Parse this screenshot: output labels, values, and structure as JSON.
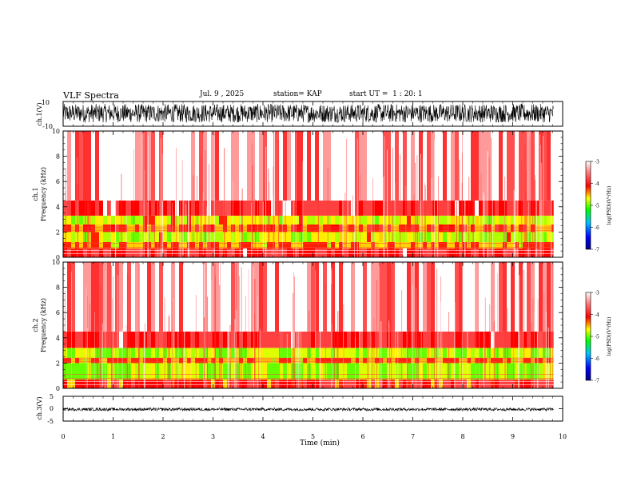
{
  "header": {
    "title": "VLF Spectra",
    "date": "Jul. 9 , 2025",
    "station": "station= KAP",
    "start": "start UT =  1 : 20: 1"
  },
  "colors": {
    "colormap": [
      "#000080",
      "#0000ff",
      "#00bfff",
      "#00ff00",
      "#ffff00",
      "#ff0000",
      "#ff8080",
      "#ffffff"
    ]
  },
  "chart_data": [
    {
      "type": "line",
      "panel": "ch1-waveform",
      "ylabel": "ch.1(V)",
      "ylim": [
        -10,
        10
      ],
      "yticks": [
        "10",
        "-10"
      ],
      "xlim": [
        0,
        10
      ],
      "data_end_min": 9.82,
      "signal": "noisy oscillation approx between -7 and 8 V"
    },
    {
      "type": "heatmap",
      "panel": "ch1-spectrogram",
      "ylabel_line1": "ch.1",
      "ylabel_line2": "Frequency (kHz)",
      "ylim": [
        0,
        10
      ],
      "yticks": [
        "0",
        "2",
        "4",
        "6",
        "8",
        "10"
      ],
      "xlim": [
        0,
        10
      ],
      "colorbar": {
        "label": "log(PSD)(V²/Hz)",
        "range": [
          -7,
          -3
        ],
        "ticks": [
          "-3",
          "-4",
          "-5",
          "-6",
          "-7"
        ]
      },
      "bands": [
        {
          "f_from": 0.0,
          "f_to": 0.7,
          "level": -3.7
        },
        {
          "f_from": 0.7,
          "f_to": 1.2,
          "level": -4.1
        },
        {
          "f_from": 1.2,
          "f_to": 2.0,
          "level": -4.4
        },
        {
          "f_from": 2.0,
          "f_to": 2.6,
          "level": -4.0
        },
        {
          "f_from": 2.6,
          "f_to": 3.3,
          "level": -4.4
        },
        {
          "f_from": 3.3,
          "f_to": 4.5,
          "level": -3.7
        },
        {
          "f_from": 4.5,
          "f_to": 10.0,
          "level": -3.1
        }
      ]
    },
    {
      "type": "heatmap",
      "panel": "ch2-spectrogram",
      "ylabel_line1": "ch.2",
      "ylabel_line2": "Frequency (kHz)",
      "ylim": [
        0,
        10
      ],
      "yticks": [
        "0",
        "2",
        "4",
        "6",
        "8",
        "10"
      ],
      "xlim": [
        0,
        10
      ],
      "colorbar": {
        "label": "log(PSD)(V²/Hz)",
        "range": [
          -7,
          -3
        ],
        "ticks": [
          "-3",
          "-4",
          "-5",
          "-6",
          "-7"
        ]
      },
      "bands": [
        {
          "f_from": 0.0,
          "f_to": 0.7,
          "level": -3.8
        },
        {
          "f_from": 0.7,
          "f_to": 2.0,
          "level": -4.6
        },
        {
          "f_from": 2.0,
          "f_to": 2.4,
          "level": -4.1
        },
        {
          "f_from": 2.4,
          "f_to": 3.2,
          "level": -4.6
        },
        {
          "f_from": 3.2,
          "f_to": 4.5,
          "level": -3.7
        },
        {
          "f_from": 4.5,
          "f_to": 10.0,
          "level": -3.1
        }
      ]
    },
    {
      "type": "line",
      "panel": "ch3-waveform",
      "ylabel": "ch.3(V)",
      "ylim": [
        -5,
        5
      ],
      "yticks": [
        "5",
        "0",
        "-5"
      ],
      "xlim": [
        0,
        10
      ],
      "data_end_min": 9.82,
      "signal": "thin band approx between -0.9 and 0.4 V",
      "xlabel": "Time (min)",
      "xticks": [
        "0",
        "1",
        "2",
        "3",
        "4",
        "5",
        "6",
        "7",
        "8",
        "9",
        "10"
      ]
    }
  ]
}
